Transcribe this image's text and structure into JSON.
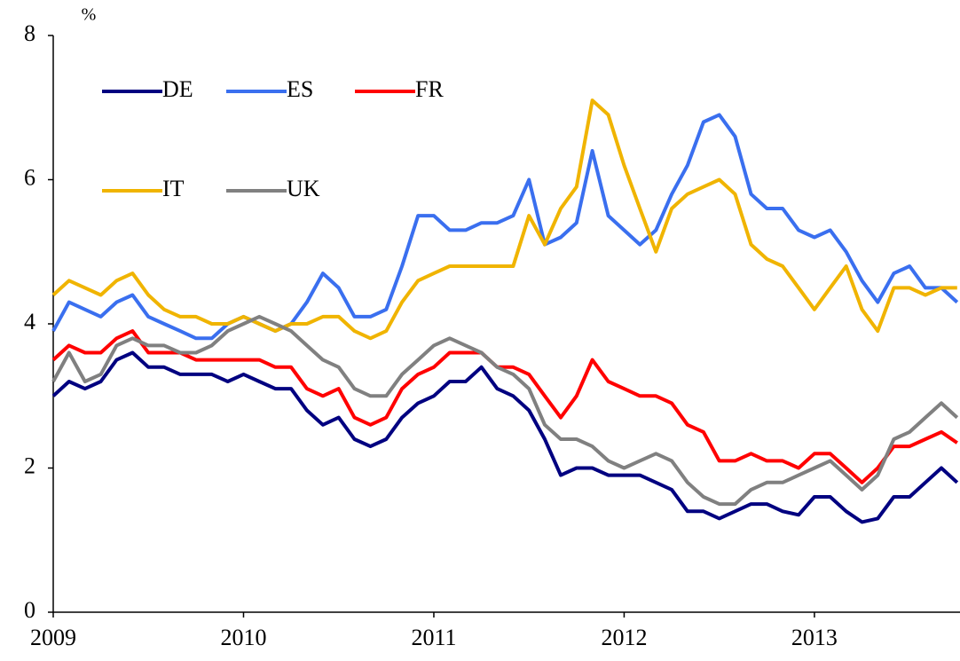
{
  "chart_data": {
    "type": "line",
    "y_unit_label": "%",
    "x": [
      2009,
      2009.083,
      2009.167,
      2009.25,
      2009.333,
      2009.417,
      2009.5,
      2009.583,
      2009.667,
      2009.75,
      2009.833,
      2009.917,
      2010,
      2010.083,
      2010.167,
      2010.25,
      2010.333,
      2010.417,
      2010.5,
      2010.583,
      2010.667,
      2010.75,
      2010.833,
      2010.917,
      2011,
      2011.083,
      2011.167,
      2011.25,
      2011.333,
      2011.417,
      2011.5,
      2011.583,
      2011.667,
      2011.75,
      2011.833,
      2011.917,
      2012,
      2012.083,
      2012.167,
      2012.25,
      2012.333,
      2012.417,
      2012.5,
      2012.583,
      2012.667,
      2012.75,
      2012.833,
      2012.917,
      2013,
      2013.083,
      2013.167,
      2013.25,
      2013.333,
      2013.417,
      2013.5,
      2013.583,
      2013.667,
      2013.75
    ],
    "series": [
      {
        "name": "DE",
        "color": "#000080",
        "values": [
          3.0,
          3.2,
          3.1,
          3.2,
          3.5,
          3.6,
          3.4,
          3.4,
          3.3,
          3.3,
          3.3,
          3.2,
          3.3,
          3.2,
          3.1,
          3.1,
          2.8,
          2.6,
          2.7,
          2.4,
          2.3,
          2.4,
          2.7,
          2.9,
          3.0,
          3.2,
          3.2,
          3.4,
          3.1,
          3.0,
          2.8,
          2.4,
          1.9,
          2.0,
          2.0,
          1.9,
          1.9,
          1.9,
          1.8,
          1.7,
          1.4,
          1.4,
          1.3,
          1.4,
          1.5,
          1.5,
          1.4,
          1.35,
          1.6,
          1.6,
          1.4,
          1.25,
          1.3,
          1.6,
          1.6,
          1.8,
          2.0,
          1.8
        ]
      },
      {
        "name": "ES",
        "color": "#3a6fef",
        "values": [
          3.9,
          4.3,
          4.2,
          4.1,
          4.3,
          4.4,
          4.1,
          4.0,
          3.9,
          3.8,
          3.8,
          4.0,
          4.1,
          4.0,
          3.9,
          4.0,
          4.3,
          4.7,
          4.5,
          4.1,
          4.1,
          4.2,
          4.8,
          5.5,
          5.5,
          5.3,
          5.3,
          5.4,
          5.4,
          5.5,
          6.0,
          5.1,
          5.2,
          5.4,
          6.4,
          5.5,
          5.3,
          5.1,
          5.3,
          5.8,
          6.2,
          6.8,
          6.9,
          6.6,
          5.8,
          5.6,
          5.6,
          5.3,
          5.2,
          5.3,
          5.0,
          4.6,
          4.3,
          4.7,
          4.8,
          4.5,
          4.5,
          4.3
        ]
      },
      {
        "name": "FR",
        "color": "#ff0000",
        "values": [
          3.5,
          3.7,
          3.6,
          3.6,
          3.8,
          3.9,
          3.6,
          3.6,
          3.6,
          3.5,
          3.5,
          3.5,
          3.5,
          3.5,
          3.4,
          3.4,
          3.1,
          3.0,
          3.1,
          2.7,
          2.6,
          2.7,
          3.1,
          3.3,
          3.4,
          3.6,
          3.6,
          3.6,
          3.4,
          3.4,
          3.3,
          3.0,
          2.7,
          3.0,
          3.5,
          3.2,
          3.1,
          3.0,
          3.0,
          2.9,
          2.6,
          2.5,
          2.1,
          2.1,
          2.2,
          2.1,
          2.1,
          2.0,
          2.2,
          2.2,
          2.0,
          1.8,
          2.0,
          2.3,
          2.3,
          2.4,
          2.5,
          2.35
        ]
      },
      {
        "name": "IT",
        "color": "#f0b400",
        "values": [
          4.4,
          4.6,
          4.5,
          4.4,
          4.6,
          4.7,
          4.4,
          4.2,
          4.1,
          4.1,
          4.0,
          4.0,
          4.1,
          4.0,
          3.9,
          4.0,
          4.0,
          4.1,
          4.1,
          3.9,
          3.8,
          3.9,
          4.3,
          4.6,
          4.7,
          4.8,
          4.8,
          4.8,
          4.8,
          4.8,
          5.5,
          5.1,
          5.6,
          5.9,
          7.1,
          6.9,
          6.2,
          5.6,
          5.0,
          5.6,
          5.8,
          5.9,
          6.0,
          5.8,
          5.1,
          4.9,
          4.8,
          4.5,
          4.2,
          4.5,
          4.8,
          4.2,
          3.9,
          4.5,
          4.5,
          4.4,
          4.5,
          4.5
        ]
      },
      {
        "name": "UK",
        "color": "#808080",
        "values": [
          3.2,
          3.6,
          3.2,
          3.3,
          3.7,
          3.8,
          3.7,
          3.7,
          3.6,
          3.6,
          3.7,
          3.9,
          4.0,
          4.1,
          4.0,
          3.9,
          3.7,
          3.5,
          3.4,
          3.1,
          3.0,
          3.0,
          3.3,
          3.5,
          3.7,
          3.8,
          3.7,
          3.6,
          3.4,
          3.3,
          3.1,
          2.6,
          2.4,
          2.4,
          2.3,
          2.1,
          2.0,
          2.1,
          2.2,
          2.1,
          1.8,
          1.6,
          1.5,
          1.5,
          1.7,
          1.8,
          1.8,
          1.9,
          2.0,
          2.1,
          1.9,
          1.7,
          1.9,
          2.4,
          2.5,
          2.7,
          2.9,
          2.7
        ]
      }
    ],
    "xlim": [
      2009,
      2013.765
    ],
    "xticks": [
      2009,
      2010,
      2011,
      2012,
      2013
    ],
    "ylim": [
      0,
      8
    ],
    "yticks": [
      0,
      2,
      4,
      6,
      8
    ],
    "grid": false
  }
}
